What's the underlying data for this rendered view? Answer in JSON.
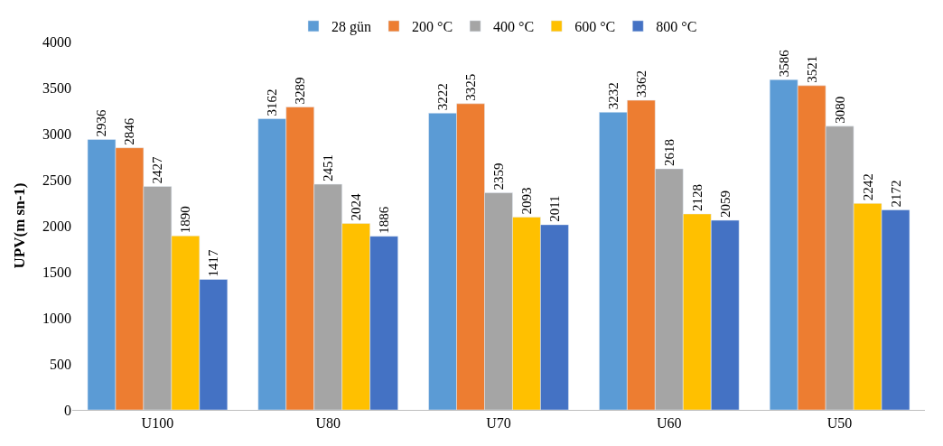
{
  "chart_data": {
    "type": "bar",
    "ylabel": "UPV(m sn-1)",
    "categories": [
      "U100",
      "U80",
      "U70",
      "U60",
      "U50"
    ],
    "series": [
      {
        "name": "28 gün",
        "color": "#5b9bd5",
        "values": [
          2936,
          3162,
          3222,
          3232,
          3586
        ]
      },
      {
        "name": "200 °C",
        "color": "#ed7d31",
        "values": [
          2846,
          3289,
          3325,
          3362,
          3521
        ]
      },
      {
        "name": "400 °C",
        "color": "#a5a5a5",
        "values": [
          2427,
          2451,
          2359,
          2618,
          3080
        ]
      },
      {
        "name": "600 °C",
        "color": "#ffc000",
        "values": [
          1890,
          2024,
          2093,
          2128,
          2242
        ]
      },
      {
        "name": "800 °C",
        "color": "#4472c4",
        "values": [
          1417,
          1886,
          2011,
          2059,
          2172
        ]
      }
    ],
    "ylim": [
      0,
      4000
    ],
    "yticks": [
      0,
      500,
      1000,
      1500,
      2000,
      2500,
      3000,
      3500,
      4000
    ],
    "grid": false,
    "legend": "top",
    "data_labels": true
  }
}
